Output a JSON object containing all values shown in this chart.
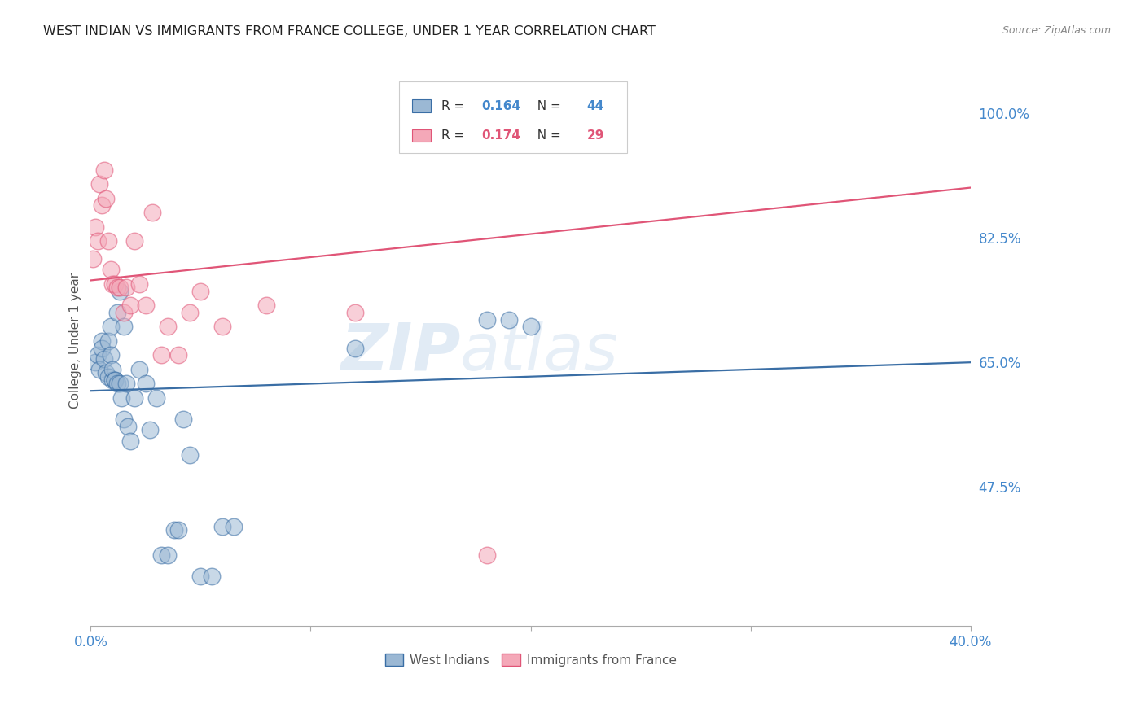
{
  "title": "WEST INDIAN VS IMMIGRANTS FROM FRANCE COLLEGE, UNDER 1 YEAR CORRELATION CHART",
  "source": "Source: ZipAtlas.com",
  "ylabel": "College, Under 1 year",
  "ylabel_ticks": [
    "100.0%",
    "82.5%",
    "65.0%",
    "47.5%"
  ],
  "ytick_values": [
    1.0,
    0.825,
    0.65,
    0.475
  ],
  "xlim": [
    0.0,
    0.4
  ],
  "ylim": [
    0.28,
    1.08
  ],
  "blue_R": "0.164",
  "blue_N": "44",
  "pink_R": "0.174",
  "pink_N": "29",
  "blue_color": "#9BB8D4",
  "pink_color": "#F4A8B8",
  "blue_line_color": "#3A6EA5",
  "pink_line_color": "#E05577",
  "background_color": "#FFFFFF",
  "grid_color": "#BBBBBB",
  "tick_label_color": "#4488CC",
  "title_color": "#222222",
  "watermark": "ZIPatlas",
  "blue_scatter_x": [
    0.002,
    0.003,
    0.004,
    0.005,
    0.005,
    0.006,
    0.007,
    0.008,
    0.008,
    0.009,
    0.009,
    0.01,
    0.01,
    0.011,
    0.011,
    0.012,
    0.012,
    0.013,
    0.013,
    0.014,
    0.015,
    0.015,
    0.016,
    0.017,
    0.018,
    0.02,
    0.022,
    0.025,
    0.027,
    0.03,
    0.032,
    0.035,
    0.038,
    0.04,
    0.042,
    0.045,
    0.05,
    0.055,
    0.06,
    0.065,
    0.12,
    0.18,
    0.19,
    0.2
  ],
  "blue_scatter_y": [
    0.65,
    0.66,
    0.64,
    0.68,
    0.67,
    0.655,
    0.635,
    0.63,
    0.68,
    0.66,
    0.7,
    0.625,
    0.64,
    0.625,
    0.625,
    0.62,
    0.72,
    0.62,
    0.75,
    0.6,
    0.57,
    0.7,
    0.62,
    0.56,
    0.54,
    0.6,
    0.64,
    0.62,
    0.555,
    0.6,
    0.38,
    0.38,
    0.415,
    0.415,
    0.57,
    0.52,
    0.35,
    0.35,
    0.42,
    0.42,
    0.67,
    0.71,
    0.71,
    0.7
  ],
  "pink_scatter_x": [
    0.001,
    0.002,
    0.003,
    0.004,
    0.005,
    0.006,
    0.007,
    0.008,
    0.009,
    0.01,
    0.011,
    0.012,
    0.013,
    0.015,
    0.016,
    0.018,
    0.02,
    0.022,
    0.025,
    0.028,
    0.032,
    0.035,
    0.04,
    0.045,
    0.05,
    0.06,
    0.08,
    0.12,
    0.18
  ],
  "pink_scatter_y": [
    0.795,
    0.84,
    0.82,
    0.9,
    0.87,
    0.92,
    0.88,
    0.82,
    0.78,
    0.76,
    0.76,
    0.755,
    0.755,
    0.72,
    0.755,
    0.73,
    0.82,
    0.76,
    0.73,
    0.86,
    0.66,
    0.7,
    0.66,
    0.72,
    0.75,
    0.7,
    0.73,
    0.72,
    0.38
  ],
  "blue_trend_x": [
    0.0,
    0.4
  ],
  "blue_trend_y": [
    0.61,
    0.65
  ],
  "pink_trend_x": [
    0.0,
    0.4
  ],
  "pink_trend_y": [
    0.765,
    0.895
  ],
  "legend_labels": [
    "West Indians",
    "Immigrants from France"
  ]
}
